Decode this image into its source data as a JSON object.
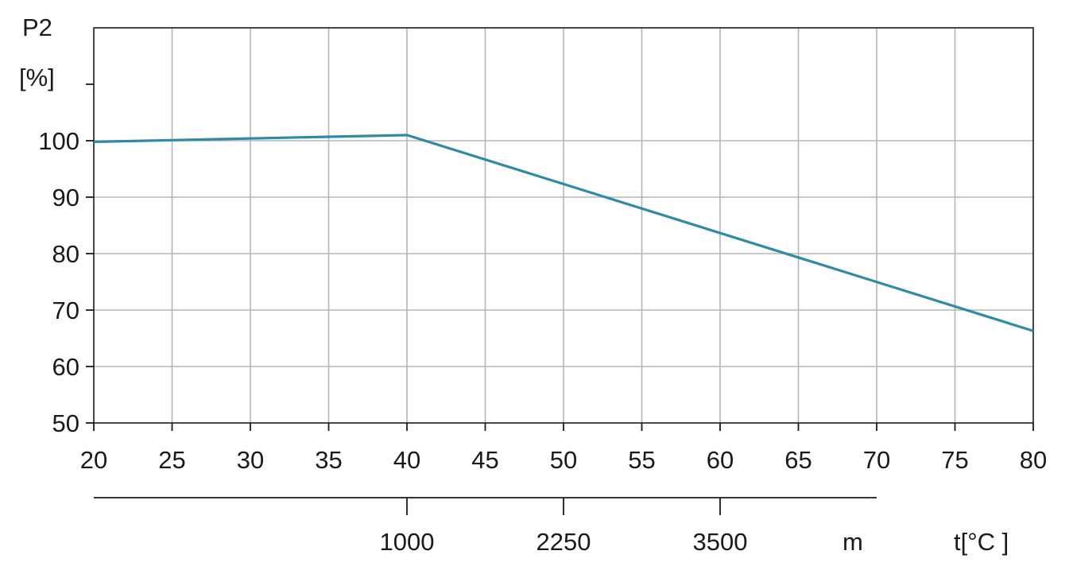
{
  "chart_data": {
    "type": "line",
    "y_unit_top": "P2",
    "y_unit_bottom": "[%]",
    "x_unit": "t[°C ]",
    "secondary_unit": "m",
    "xlim": [
      20,
      80
    ],
    "ylim": [
      50,
      120
    ],
    "x_ticks": [
      20,
      25,
      30,
      35,
      40,
      45,
      50,
      55,
      60,
      65,
      70,
      75,
      80
    ],
    "y_ticks": [
      50,
      60,
      70,
      80,
      90,
      100
    ],
    "y_minor_ticks": [
      110
    ],
    "secondary_axis": {
      "range_x": [
        20,
        70
      ],
      "ticks": [
        {
          "x": 40,
          "label": "1000"
        },
        {
          "x": 50,
          "label": "2250"
        },
        {
          "x": 60,
          "label": "3500"
        }
      ]
    },
    "grid": true,
    "series": [
      {
        "color": "#2e8ba3",
        "x": [
          20,
          40,
          80
        ],
        "y": [
          99.8,
          101,
          66.3
        ]
      }
    ]
  }
}
